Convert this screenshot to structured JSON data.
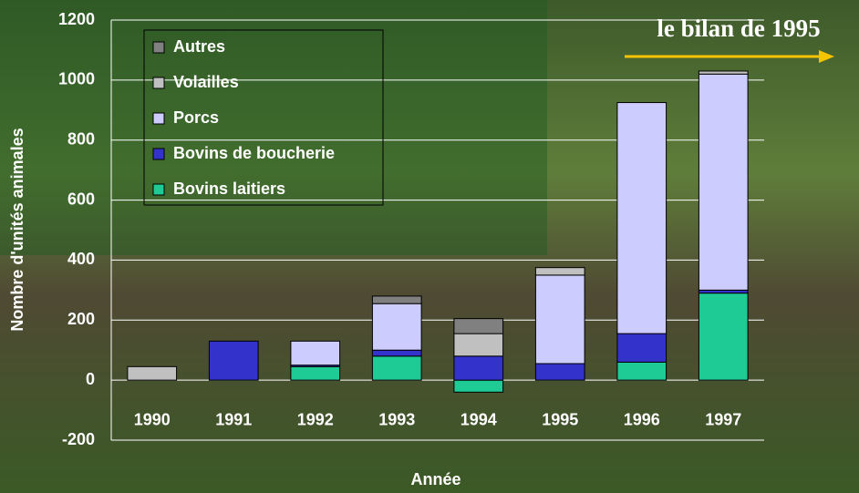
{
  "chart_data": {
    "type": "stacked_bar",
    "annotation": "le bilan de 1995",
    "x_label": "Année",
    "y_label": "Nombre d'unités animales",
    "categories": [
      "1990",
      "1991",
      "1992",
      "1993",
      "1994",
      "1995",
      "1996",
      "1997"
    ],
    "series": [
      {
        "name": "Bovins laitiers",
        "color": "#1ecb94",
        "values": [
          0,
          0,
          45,
          80,
          -40,
          0,
          60,
          290
        ]
      },
      {
        "name": "Bovins de boucherie",
        "color": "#3333cc",
        "values": [
          0,
          130,
          5,
          20,
          80,
          55,
          95,
          10
        ]
      },
      {
        "name": "Porcs",
        "color": "#ccccff",
        "values": [
          0,
          0,
          80,
          155,
          0,
          295,
          770,
          720
        ]
      },
      {
        "name": "Volailles",
        "color": "#c0c0c0",
        "values": [
          45,
          0,
          0,
          0,
          75,
          25,
          0,
          10
        ]
      },
      {
        "name": "Autres",
        "color": "#808080",
        "values": [
          0,
          0,
          0,
          25,
          50,
          0,
          0,
          0
        ]
      }
    ],
    "ylim": [
      -200,
      1200
    ],
    "yticks": [
      -200,
      0,
      200,
      400,
      600,
      800,
      1000,
      1200
    ],
    "grid": true
  }
}
